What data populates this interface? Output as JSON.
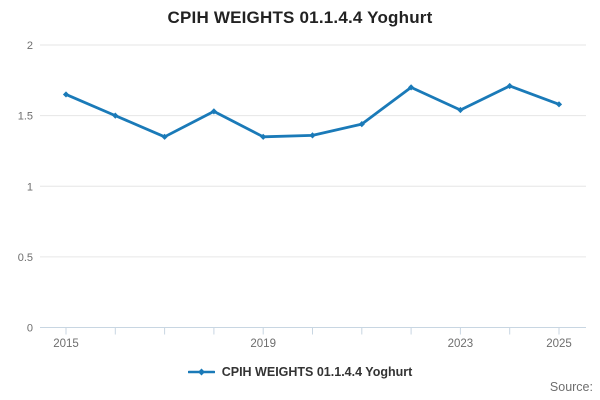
{
  "page": {
    "title": "CPIH WEIGHTS 01.1.4.4 Yoghurt",
    "source_label": "Source:"
  },
  "legend": {
    "label": "CPIH WEIGHTS 01.1.4.4 Yoghurt",
    "marker": "line-with-diamond-icon"
  },
  "colors": {
    "line": "#1a7ab8",
    "grid": "#e6e6e6",
    "axis": "#c8d6e2",
    "tick_label": "#6e6e6e",
    "title": "#222222",
    "legend_text": "#333333",
    "source_text": "#6e6e6e"
  },
  "chart_data": {
    "type": "line",
    "title": "CPIH WEIGHTS 01.1.4.4 Yoghurt",
    "x": [
      2015,
      2016,
      2017,
      2018,
      2019,
      2020,
      2021,
      2022,
      2023,
      2024,
      2025
    ],
    "series": [
      {
        "name": "CPIH WEIGHTS 01.1.4.4 Yoghurt",
        "values": [
          1.65,
          1.5,
          1.35,
          1.53,
          1.35,
          1.36,
          1.44,
          1.7,
          1.54,
          1.71,
          1.58
        ]
      }
    ],
    "xlabel": "",
    "ylabel": "",
    "ylim": [
      0,
      2
    ],
    "yticks": [
      0,
      0.5,
      1,
      1.5,
      2
    ],
    "xtick_labels": [
      2015,
      2019,
      2023,
      2025
    ],
    "grid": true,
    "legend_position": "bottom",
    "source_label": "Source:"
  }
}
